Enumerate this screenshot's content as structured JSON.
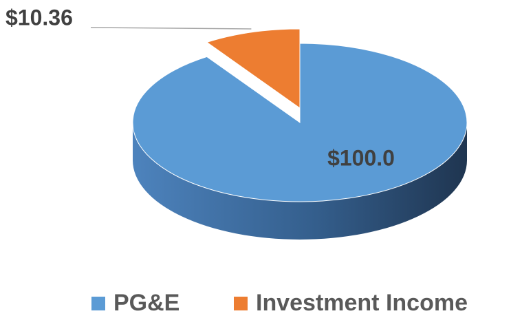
{
  "chart_data": {
    "type": "pie",
    "categories": [
      "PG&E",
      "Investment Income"
    ],
    "values": [
      100.0,
      10.36
    ],
    "value_labels": [
      "$100.0",
      "$10.36"
    ],
    "colors": [
      "#5b9bd5",
      "#ed7d31"
    ],
    "legend": "bottom"
  }
}
